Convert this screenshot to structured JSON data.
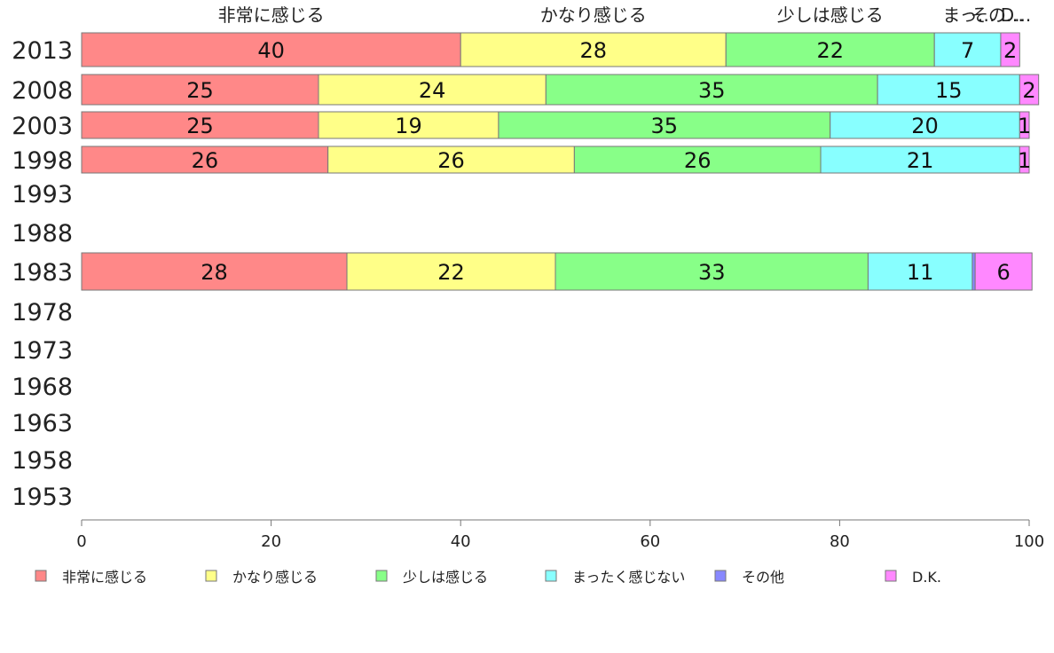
{
  "chart_data": {
    "type": "bar",
    "orientation": "horizontal",
    "stacked": true,
    "title": "",
    "xlabel": "",
    "ylabel": "",
    "xlim": [
      0,
      100
    ],
    "x_ticks": [
      0,
      20,
      40,
      60,
      80,
      100
    ],
    "categories": [
      "2013",
      "2008",
      "2003",
      "1998",
      "1993",
      "1988",
      "1983",
      "1978",
      "1973",
      "1968",
      "1963",
      "1958",
      "1953"
    ],
    "series": [
      {
        "name": "非常に感じる",
        "color": "#ff8888",
        "values": [
          40,
          25,
          25,
          26,
          null,
          null,
          28,
          null,
          null,
          null,
          null,
          null,
          null
        ]
      },
      {
        "name": "かなり感じる",
        "color": "#ffff88",
        "values": [
          28,
          24,
          19,
          26,
          null,
          null,
          22,
          null,
          null,
          null,
          null,
          null,
          null
        ]
      },
      {
        "name": "少しは感じる",
        "color": "#88ff88",
        "values": [
          22,
          35,
          35,
          26,
          null,
          null,
          33,
          null,
          null,
          null,
          null,
          null,
          null
        ]
      },
      {
        "name": "まったく感じない",
        "color": "#88ffff",
        "values": [
          7,
          15,
          20,
          21,
          null,
          null,
          11,
          null,
          null,
          null,
          null,
          null,
          null
        ]
      },
      {
        "name": "その他",
        "color": "#8888ff",
        "values": [
          0,
          0,
          0,
          0,
          null,
          null,
          0.3,
          null,
          null,
          null,
          null,
          null,
          null
        ]
      },
      {
        "name": "D.K.",
        "color": "#ff88ff",
        "values": [
          2,
          2,
          1,
          1,
          null,
          null,
          6,
          null,
          null,
          null,
          null,
          null,
          null
        ]
      }
    ],
    "top_labels": [
      "非常に感じる",
      "かなり感じる",
      "少しは感じる",
      "まっ…",
      "その…",
      "D..."
    ],
    "legend_position": "bottom",
    "grid": false
  }
}
